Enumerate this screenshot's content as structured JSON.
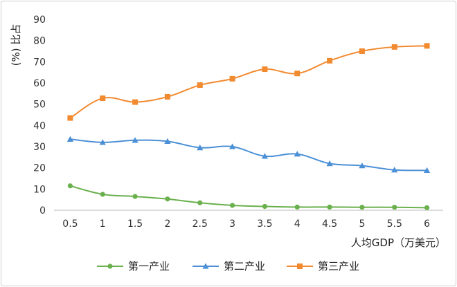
{
  "chart_data": {
    "type": "line",
    "title": "",
    "xlabel": "人均GDP（万美元）",
    "ylabel": "(%) 比占",
    "x": [
      0.5,
      1,
      1.5,
      2,
      2.5,
      3,
      3.5,
      4,
      4.5,
      5,
      5.5,
      6
    ],
    "x_tick_labels": [
      "0.5",
      "1",
      "1.5",
      "2",
      "2.5",
      "3",
      "3.5",
      "4",
      "4.5",
      "5",
      "5.5",
      "6"
    ],
    "ylim": [
      0,
      90
    ],
    "y_ticks": [
      0,
      10,
      20,
      30,
      40,
      50,
      60,
      70,
      80,
      90
    ],
    "grid": false,
    "legend_position": "bottom",
    "series": [
      {
        "name": "第一产业",
        "color": "#6ab04c",
        "marker": "circle",
        "values": [
          11.5,
          7.5,
          6.5,
          5.3,
          3.5,
          2.3,
          1.8,
          1.5,
          1.5,
          1.4,
          1.4,
          1.2
        ]
      },
      {
        "name": "第二产业",
        "color": "#4b90d6",
        "marker": "triangle",
        "values": [
          33.5,
          32.0,
          33.0,
          32.5,
          29.5,
          30.0,
          25.5,
          26.5,
          22.0,
          21.0,
          19.0,
          18.8
        ]
      },
      {
        "name": "第三产业",
        "color": "#f28a30",
        "marker": "square",
        "values": [
          43.5,
          52.8,
          51.0,
          53.5,
          59.0,
          62.0,
          66.5,
          64.5,
          70.5,
          75.0,
          77.0,
          77.5
        ]
      }
    ]
  }
}
